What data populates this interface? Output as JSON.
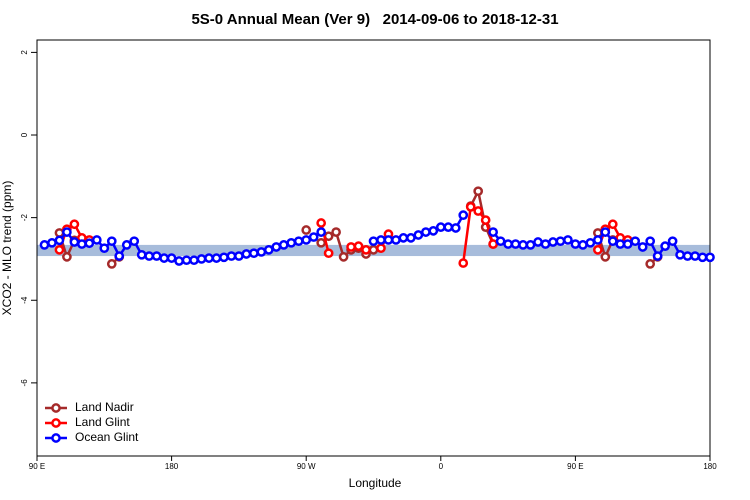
{
  "chart_data": {
    "type": "line",
    "title": "5S-0 Annual Mean (Ver 9)   2014-09-06 to 2018-12-31",
    "x_label": "Longitude",
    "y_label": "XCO2 - MLO trend (ppm)",
    "xlim": [
      90,
      540
    ],
    "ylim": [
      -7.77,
      2.3
    ],
    "xticks": [
      {
        "value": 90,
        "label": "90 E"
      },
      180,
      {
        "value": 270,
        "label": "90 W"
      },
      {
        "value": 360,
        "label": "0"
      },
      {
        "value": 450,
        "label": "90 E"
      },
      {
        "value": 540,
        "label": "180"
      }
    ],
    "yticks": [
      -6,
      -4,
      -2,
      0,
      2
    ],
    "band": {
      "range": [
        -2.93,
        -2.66
      ],
      "color": "#a7bcdb"
    },
    "legend": "bottom-left",
    "series": [
      {
        "name": "Land Nadir",
        "color": "#a52a2a",
        "x": [
          105,
          110,
          115,
          120,
          130,
          140,
          145,
          260,
          270,
          275,
          280,
          285,
          290,
          295,
          300,
          305,
          310,
          315,
          350,
          380,
          385,
          390,
          395,
          430,
          465,
          470,
          475,
          480,
          490,
          500,
          505
        ],
        "values": [
          -2.37,
          -2.95,
          -2.55,
          -2.59,
          null,
          -3.12,
          -2.95,
          null,
          -2.3,
          null,
          -2.61,
          -2.45,
          -2.35,
          -2.95,
          -2.78,
          -2.74,
          -2.88,
          -2.78,
          null,
          -1.72,
          -1.36,
          -2.23,
          -2.64,
          null,
          -2.37,
          -2.95,
          -2.54,
          -2.59,
          null,
          -3.12,
          -2.95
        ]
      },
      {
        "name": "Land Glint",
        "color": "#ff0000",
        "x": [
          105,
          110,
          115,
          120,
          125,
          200,
          280,
          285,
          290,
          300,
          305,
          310,
          315,
          320,
          325,
          350,
          375,
          380,
          385,
          390,
          395,
          430,
          465,
          470,
          475,
          480,
          485
        ],
        "values": [
          -2.78,
          -2.28,
          -2.16,
          -2.49,
          -2.54,
          null,
          -2.13,
          -2.86,
          null,
          -2.71,
          -2.69,
          -2.78,
          null,
          -2.74,
          -2.4,
          null,
          -3.1,
          -1.74,
          -1.84,
          -2.06,
          -2.64,
          null,
          -2.78,
          -2.28,
          -2.16,
          -2.49,
          -2.54
        ]
      },
      {
        "name": "Ocean Glint",
        "color": "#0000ff",
        "x": [
          95,
          100,
          105,
          110,
          115,
          120,
          125,
          130,
          135,
          140,
          145,
          150,
          155,
          160,
          165,
          170,
          175,
          180,
          185,
          190,
          195,
          200,
          205,
          210,
          215,
          220,
          225,
          230,
          235,
          240,
          245,
          250,
          255,
          260,
          265,
          270,
          275,
          280,
          300,
          315,
          320,
          325,
          330,
          335,
          340,
          345,
          350,
          355,
          360,
          365,
          370,
          375,
          385,
          395,
          400,
          405,
          410,
          415,
          420,
          425,
          430,
          435,
          440,
          445,
          450,
          455,
          460,
          465,
          470,
          475,
          480,
          485,
          490,
          495,
          500,
          505,
          510,
          515,
          520,
          525,
          530,
          535,
          540
        ],
        "values": [
          -2.66,
          -2.61,
          -2.55,
          -2.35,
          -2.59,
          -2.64,
          -2.62,
          -2.54,
          -2.74,
          -2.57,
          -2.93,
          -2.66,
          -2.57,
          -2.9,
          -2.93,
          -2.93,
          -2.98,
          -2.98,
          -3.05,
          -3.03,
          -3.03,
          -3.0,
          -2.98,
          -2.98,
          -2.96,
          -2.93,
          -2.93,
          -2.88,
          -2.86,
          -2.83,
          -2.78,
          -2.71,
          -2.66,
          -2.61,
          -2.57,
          -2.54,
          -2.47,
          -2.35,
          null,
          -2.57,
          -2.54,
          -2.54,
          -2.54,
          -2.49,
          -2.49,
          -2.42,
          -2.35,
          -2.32,
          -2.23,
          -2.23,
          -2.25,
          -1.94,
          null,
          -2.35,
          -2.57,
          -2.64,
          -2.64,
          -2.66,
          -2.66,
          -2.59,
          -2.64,
          -2.59,
          -2.57,
          -2.54,
          -2.64,
          -2.66,
          -2.61,
          -2.54,
          -2.35,
          -2.57,
          -2.64,
          -2.64,
          -2.57,
          -2.71,
          -2.57,
          -2.93,
          -2.69,
          -2.57,
          -2.9,
          -2.93,
          -2.93,
          -2.96,
          -2.96
        ]
      }
    ]
  }
}
